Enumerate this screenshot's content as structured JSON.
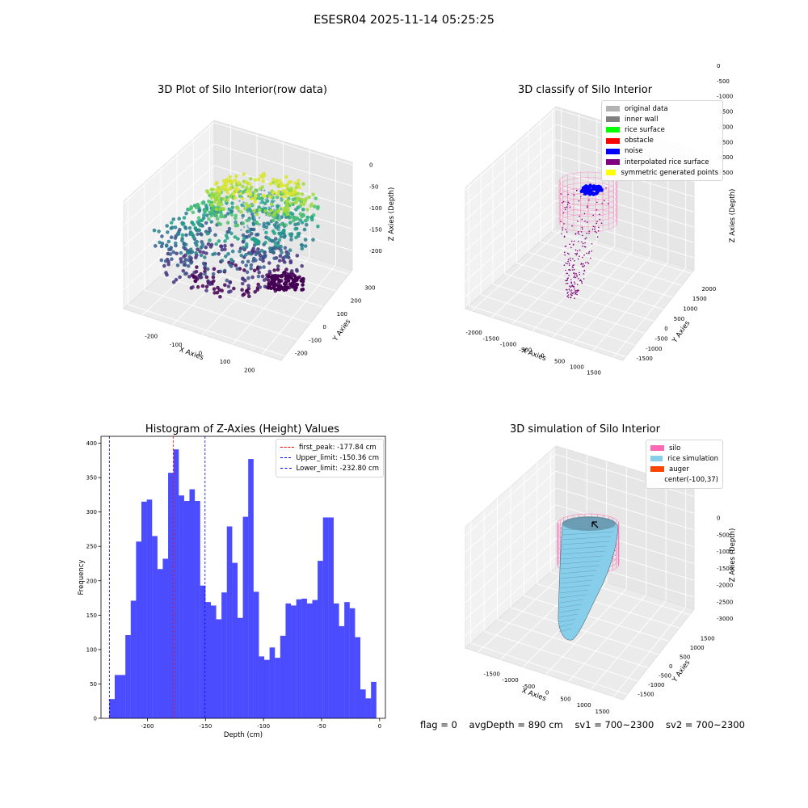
{
  "figure": {
    "suptitle": "ESESR04 2025-11-14 05:25:25"
  },
  "panel1": {
    "title": "3D Plot of Silo Interior(row data)",
    "xlabel": "X Axies",
    "ylabel": "Y Axies",
    "zlabel": "Z Axies (Depth)",
    "xticks": [
      "-200",
      "-100",
      "0",
      "100",
      "200"
    ],
    "yticks": [
      "-200",
      "-100",
      "0",
      "100",
      "200",
      "300"
    ],
    "zticks": [
      "0",
      "-50",
      "-100",
      "-150",
      "-200"
    ]
  },
  "panel2": {
    "title": "3D classify of Silo Interior",
    "xlabel": "X Axies",
    "ylabel": "Y Axies",
    "zlabel": "Z Axies (Depth)",
    "xticks": [
      "-2000",
      "-1500",
      "-1000",
      "-500",
      "0",
      "500",
      "1000",
      "1500"
    ],
    "yticks": [
      "-1500",
      "-1000",
      "-500",
      "0",
      "500",
      "1000",
      "1500",
      "2000"
    ],
    "zticks": [
      "0",
      "-500",
      "-1000",
      "-1500",
      "-2000",
      "-2500",
      "-3000",
      "-3500"
    ],
    "legend": [
      {
        "label": "original data",
        "color": "#b3b3b3"
      },
      {
        "label": "inner wall",
        "color": "#808080"
      },
      {
        "label": "rice surface",
        "color": "#00ff00"
      },
      {
        "label": "obstacle",
        "color": "#ff0000"
      },
      {
        "label": "noise",
        "color": "#0000ff"
      },
      {
        "label": "interpolated rice surface",
        "color": "#800080"
      },
      {
        "label": "symmetric generated points",
        "color": "#ffff00"
      }
    ]
  },
  "panel4": {
    "title": "3D simulation of Silo Interior",
    "xlabel": "X Axies",
    "ylabel": "Y Axies",
    "zlabel": "Z Axies (Depth)",
    "xticks": [
      "-1500",
      "-1000",
      "-500",
      "0",
      "500",
      "1000",
      "1500"
    ],
    "yticks": [
      "-1500",
      "-1000",
      "-500",
      "0",
      "500",
      "1000",
      "1500"
    ],
    "zticks": [
      "0",
      "-500",
      "-1000",
      "-1500",
      "-2000",
      "-2500",
      "-3000"
    ],
    "legend": [
      {
        "label": "silo",
        "color": "#ff69b4"
      },
      {
        "label": "rice simulation",
        "color": "#87ceeb"
      },
      {
        "label": "auger",
        "color": "#ff4500"
      },
      {
        "label": "center(-100,37)",
        "color": ""
      }
    ]
  },
  "footer": {
    "flag": "flag = 0",
    "avg": "avgDepth = 890 cm",
    "sv1": "sv1 = 700~2300",
    "sv2": "sv2 = 700~2300"
  },
  "chart_data": [
    {
      "type": "scatter",
      "title": "3D Plot of Silo Interior(row data)",
      "xlabel": "X Axies",
      "ylabel": "Y Axies",
      "zlabel": "Z Axies (Depth)",
      "xlim": [
        -250,
        250
      ],
      "ylim": [
        -250,
        300
      ],
      "zlim": [
        -230,
        0
      ],
      "colormap": "viridis"
    },
    {
      "type": "scatter",
      "title": "3D classify of Silo Interior",
      "xlabel": "X Axies",
      "ylabel": "Y Axies",
      "zlabel": "Z Axies (Depth)",
      "xlim": [
        -2000,
        1500
      ],
      "ylim": [
        -1500,
        2000
      ],
      "zlim": [
        -3500,
        0
      ],
      "legend_position": "top-right"
    },
    {
      "type": "bar",
      "title": "Histogram of Z-Axies (Height) Values",
      "xlabel": "Depth (cm)",
      "ylabel": "Frequency",
      "xlim": [
        -240,
        5
      ],
      "ylim": [
        0,
        410
      ],
      "xticks": [
        -200,
        -150,
        -100,
        -50,
        0
      ],
      "yticks": [
        0,
        50,
        100,
        150,
        200,
        250,
        300,
        350,
        400
      ],
      "bin_start": -232.8,
      "bin_width": 4.6,
      "values": [
        28,
        63,
        63,
        121,
        171,
        257,
        315,
        318,
        265,
        217,
        232,
        357,
        391,
        324,
        316,
        333,
        316,
        193,
        169,
        164,
        144,
        183,
        279,
        226,
        146,
        293,
        377,
        184,
        90,
        85,
        103,
        88,
        120,
        167,
        164,
        173,
        174,
        167,
        172,
        229,
        292,
        292,
        167,
        134,
        169,
        160,
        118,
        42,
        29,
        53
      ],
      "color": "#0000ff",
      "vlines": [
        {
          "name": "first_peak: -177.84 cm",
          "x": -177.84,
          "color": "#ff0000"
        },
        {
          "name": "Upper_limit: -150.36 cm",
          "x": -150.36,
          "color": "#0000ff"
        },
        {
          "name": "Lower_limit: -232.80 cm",
          "x": -232.8,
          "color": "#0000ff"
        }
      ],
      "legend_position": "top-right"
    },
    {
      "type": "scatter",
      "title": "3D simulation of Silo Interior",
      "xlabel": "X Axies",
      "ylabel": "Y Axies",
      "zlabel": "Z Axies (Depth)",
      "xlim": [
        -1700,
        1700
      ],
      "ylim": [
        -1600,
        1800
      ],
      "zlim": [
        -3200,
        200
      ],
      "legend_position": "top-right"
    }
  ]
}
